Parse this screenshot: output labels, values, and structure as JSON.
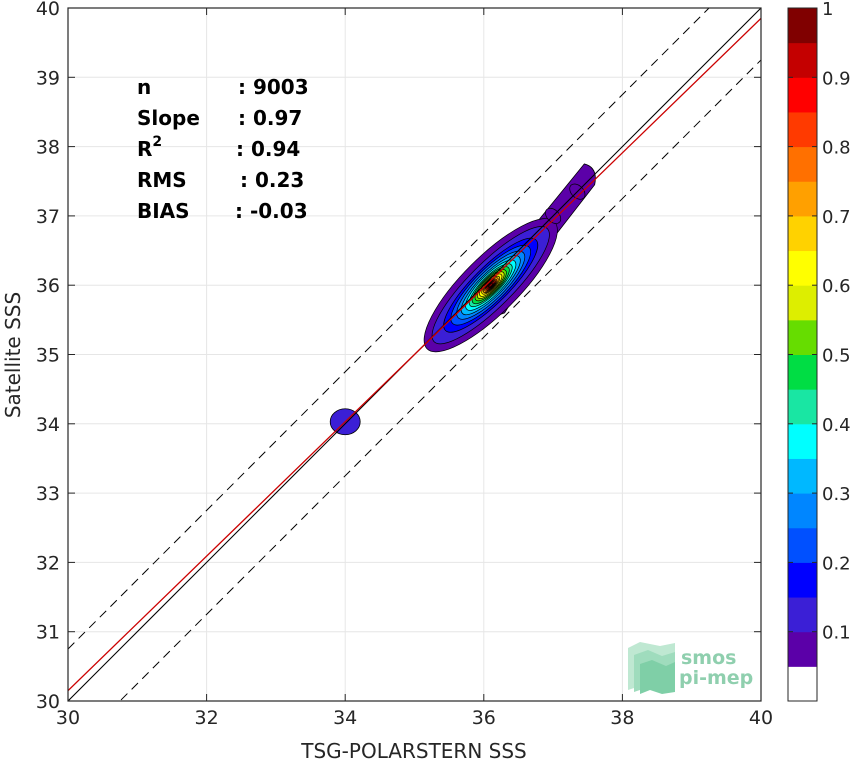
{
  "chart_data": {
    "type": "contour",
    "xlabel": "TSG-POLARSTERN SSS",
    "ylabel": "Satellite SSS",
    "xlim": [
      30,
      40
    ],
    "ylim": [
      30,
      40
    ],
    "xticks": [
      "30",
      "32",
      "34",
      "36",
      "38",
      "40"
    ],
    "yticks": [
      "30",
      "31",
      "32",
      "33",
      "34",
      "35",
      "36",
      "37",
      "38",
      "39",
      "40"
    ],
    "grid": true,
    "stats": [
      {
        "label": "n",
        "value": ": 9003"
      },
      {
        "label": "Slope",
        "value": ": 0.97"
      },
      {
        "label": "R",
        "sup": "2",
        "value": ": 0.94"
      },
      {
        "label": "RMS",
        "value": ": 0.23"
      },
      {
        "label": "BIAS",
        "value": ": -0.03"
      }
    ],
    "lines": {
      "identity": {
        "slope": 1,
        "intercept": 0,
        "color": "#000000"
      },
      "regression": {
        "slope": 0.97,
        "intercept": 1.05,
        "color": "#cc0000"
      },
      "bounds": {
        "offset": 0.75,
        "style": "dashed"
      }
    },
    "density_peak": {
      "x": 36.1,
      "y": 36.0
    },
    "secondary_blobs": [
      {
        "x": 34.0,
        "y": 34.03
      },
      {
        "x": 37.0,
        "y": 37.0
      },
      {
        "x": 37.35,
        "y": 37.35
      }
    ],
    "colorbar": {
      "ticks": [
        "0.1",
        "0.2",
        "0.3",
        "0.4",
        "0.5",
        "0.6",
        "0.7",
        "0.8",
        "0.9",
        "1"
      ],
      "colors": [
        "#ffffff",
        "#5b00a8",
        "#3b1fd6",
        "#0000ff",
        "#0050ff",
        "#0086ff",
        "#00b8ff",
        "#00ffff",
        "#19e6a3",
        "#00dd44",
        "#66dd00",
        "#ddee00",
        "#ffff00",
        "#ffd200",
        "#ffa000",
        "#ff7000",
        "#ff3a00",
        "#ff0000",
        "#c40000",
        "#800000"
      ],
      "levels": [
        0.0,
        0.05,
        0.1,
        0.15,
        0.2,
        0.25,
        0.3,
        0.35,
        0.4,
        0.45,
        0.5,
        0.55,
        0.6,
        0.65,
        0.7,
        0.75,
        0.8,
        0.85,
        0.9,
        0.95
      ]
    },
    "logo": {
      "line1": "smos",
      "line2": "pi-mep"
    }
  }
}
